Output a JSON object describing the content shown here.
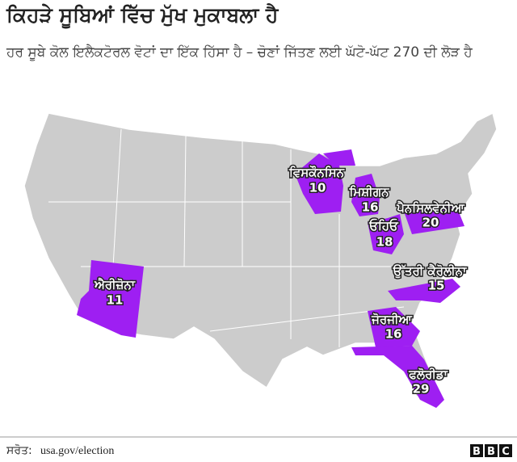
{
  "header": {
    "title": "ਕਿਹੜੇ ਸੂਬਿਆਂ ਵਿੱਚ ਮੁੱਖ ਮੁਕਾਬਲਾ ਹੈ",
    "subtitle": "ਹਰ ਸੂਬੇ ਕੋਲ ਇਲੈਕਟੋਰਲ ਵੋਟਾਂ ਦਾ ਇੱਕ ਹਿੱਸਾ ਹੈ – ਚੋਣਾਂ ਜਿੱਤਣ ਲਈ ਘੱਟੋ-ਘੱਟ 270 ਦੀ ਲੋੜ ਹੈ"
  },
  "map": {
    "highlight_color": "#9e1ff2",
    "base_color": "#cccccc",
    "states": [
      {
        "name": "ਵਿਸਕੌਨਸਿਨ",
        "votes": 10
      },
      {
        "name": "ਮਿਸ਼ੀਗਨ",
        "votes": 16
      },
      {
        "name": "ਓਹਿਓ",
        "votes": 18
      },
      {
        "name": "ਪੈਨਸਿਲਵੇਨੀਆ",
        "votes": 20
      },
      {
        "name": "ਉੱਤਰੀ ਕੈਰੋਲੀਨਾ",
        "votes": 15
      },
      {
        "name": "ਐਰੀਜ਼ੋਨਾ",
        "votes": 11
      },
      {
        "name": "ਜੋਰਜੀਆ",
        "votes": 16
      },
      {
        "name": "ਫਲੋਰੀਡਾ",
        "votes": 29
      }
    ]
  },
  "footer": {
    "source_label": "ਸਰੋਤ:",
    "source": "usa.gov/election",
    "logo": [
      "B",
      "B",
      "C"
    ]
  }
}
